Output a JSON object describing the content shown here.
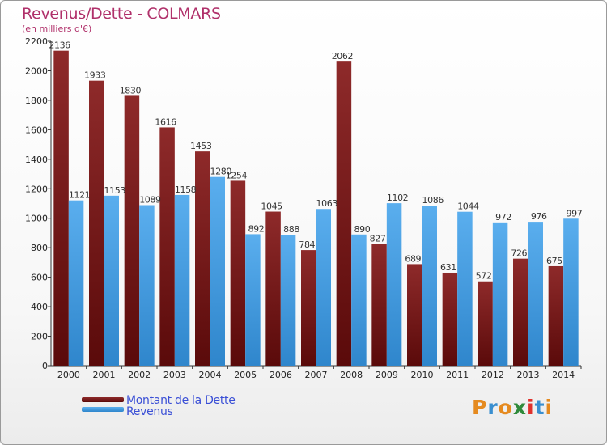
{
  "chart_data": {
    "type": "bar",
    "title": "Revenus/Dette - COLMARS",
    "subtitle": "(en milliers d'€)",
    "categories": [
      "2000",
      "2001",
      "2002",
      "2003",
      "2004",
      "2005",
      "2006",
      "2007",
      "2008",
      "2009",
      "2010",
      "2011",
      "2012",
      "2013",
      "2014"
    ],
    "series": [
      {
        "name": "Montant de la Dette",
        "color": "#7a1a1a",
        "values": [
          2136,
          1933,
          1830,
          1616,
          1453,
          1254,
          1045,
          784,
          2062,
          827,
          689,
          631,
          572,
          726,
          675
        ]
      },
      {
        "name": "Revenus",
        "color": "#3c9ae0",
        "values": [
          1121,
          1153,
          1089,
          1158,
          1280,
          892,
          888,
          1063,
          890,
          1102,
          1086,
          1044,
          972,
          976,
          997
        ]
      }
    ],
    "ylim": [
      0,
      2200
    ],
    "yticks": [
      0,
      200,
      400,
      600,
      800,
      1000,
      1200,
      1400,
      1600,
      1800,
      2000,
      2200
    ],
    "grid": false,
    "legend_position": "bottom-left"
  },
  "logo": {
    "text": "Proxiti",
    "letter_colors": [
      "#e58a1f",
      "#3a8fd0",
      "#e58a1f",
      "#2f8a3a",
      "#e0312c",
      "#3a8fd0",
      "#e58a1f"
    ]
  }
}
